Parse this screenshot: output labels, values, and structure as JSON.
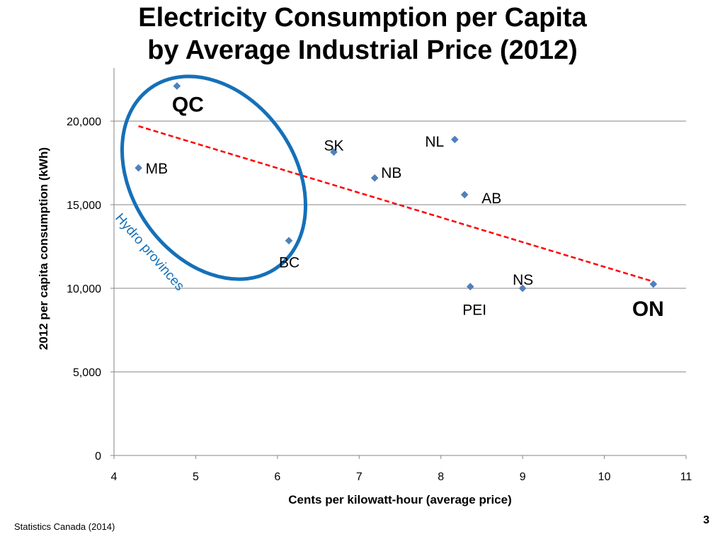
{
  "title_line1": "Electricity Consumption per Capita",
  "title_line2": "by Average Industrial Price (2012)",
  "source": "Statistics Canada (2014)",
  "page_number": "3",
  "chart_data": {
    "type": "scatter",
    "title": "Electricity Consumption per Capita by Average Industrial Price (2012)",
    "xlabel": "Cents per kilowatt-hour (average price)",
    "ylabel": "2012 per capita consumption (kWh)",
    "xlim": [
      4,
      11
    ],
    "ylim": [
      0,
      22500
    ],
    "x_ticks": [
      4,
      5,
      6,
      7,
      8,
      9,
      10,
      11
    ],
    "x_tick_labels": [
      "4",
      "5",
      "6",
      "7",
      "8",
      "9",
      "10",
      "11"
    ],
    "y_ticks": [
      0,
      5000,
      10000,
      15000,
      20000
    ],
    "y_tick_labels": [
      "0",
      "5,000",
      "10,000",
      "15,000",
      "20,000"
    ],
    "grid": "horizontal",
    "marker_color": "#4f81bd",
    "points": [
      {
        "label": "QC",
        "x": 4.77,
        "y": 22100,
        "bold": true
      },
      {
        "label": "MB",
        "x": 4.3,
        "y": 17200,
        "bold": false
      },
      {
        "label": "BC",
        "x": 6.14,
        "y": 12850,
        "bold": false
      },
      {
        "label": "SK",
        "x": 6.69,
        "y": 18150,
        "bold": false
      },
      {
        "label": "NB",
        "x": 7.19,
        "y": 16600,
        "bold": false
      },
      {
        "label": "NL",
        "x": 8.17,
        "y": 18900,
        "bold": false
      },
      {
        "label": "AB",
        "x": 8.29,
        "y": 15600,
        "bold": false
      },
      {
        "label": "PEI",
        "x": 8.36,
        "y": 10100,
        "bold": false
      },
      {
        "label": "NS",
        "x": 9.0,
        "y": 10000,
        "bold": false
      },
      {
        "label": "ON",
        "x": 10.6,
        "y": 10250,
        "bold": true
      }
    ],
    "trendline": {
      "x": [
        4.3,
        10.6
      ],
      "y": [
        19700,
        10400
      ],
      "color": "#ff0000",
      "style": "dashed"
    },
    "annotation": {
      "text": "Hydro provinces",
      "color": "#1570b8"
    }
  }
}
